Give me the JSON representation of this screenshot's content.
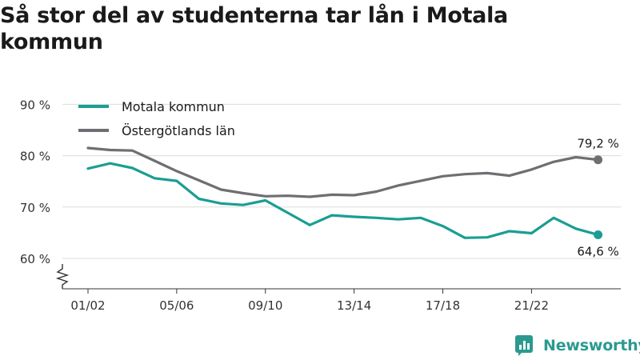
{
  "title": "Så stor del av studenterna tar lån i Motala kommun",
  "brand": {
    "name": "Newsworthy",
    "color": "#2a9a8f"
  },
  "chart_data": {
    "type": "line",
    "title": "Så stor del av studenterna tar lån i Motala kommun",
    "xlabel": "",
    "ylabel": "",
    "x": [
      "01/02",
      "02/03",
      "03/04",
      "04/05",
      "05/06",
      "06/07",
      "07/08",
      "08/09",
      "09/10",
      "10/11",
      "11/12",
      "12/13",
      "13/14",
      "14/15",
      "15/16",
      "16/17",
      "17/18",
      "18/19",
      "19/20",
      "20/21",
      "21/22",
      "22/23",
      "23/24",
      "24/25"
    ],
    "x_tick_labels": [
      "01/02",
      "05/06",
      "09/10",
      "13/14",
      "17/18",
      "21/22"
    ],
    "y_ticks": [
      60,
      70,
      80,
      90
    ],
    "y_tick_labels": [
      "60 %",
      "70 %",
      "80 %",
      "90 %"
    ],
    "ylim": [
      55,
      92
    ],
    "y_axis_broken": true,
    "grid": true,
    "legend_position": "top-left",
    "series": [
      {
        "name": "Motala kommun",
        "color": "#1a9e93",
        "values": [
          77.5,
          78.5,
          77.6,
          75.6,
          75.1,
          71.6,
          70.7,
          70.4,
          71.3,
          68.9,
          66.5,
          68.4,
          68.1,
          67.9,
          67.6,
          67.9,
          66.3,
          64.0,
          64.1,
          65.3,
          64.9,
          67.9,
          65.8,
          64.6
        ],
        "end_label": "64,6 %"
      },
      {
        "name": "Östergötlands län",
        "color": "#6e6e73",
        "values": [
          81.5,
          81.1,
          81.0,
          79.0,
          77.0,
          75.2,
          73.4,
          72.7,
          72.1,
          72.2,
          72.0,
          72.4,
          72.3,
          73.0,
          74.2,
          75.1,
          76.0,
          76.4,
          76.6,
          76.1,
          77.3,
          78.8,
          79.7,
          79.2
        ],
        "end_label": "79,2 %"
      }
    ]
  }
}
